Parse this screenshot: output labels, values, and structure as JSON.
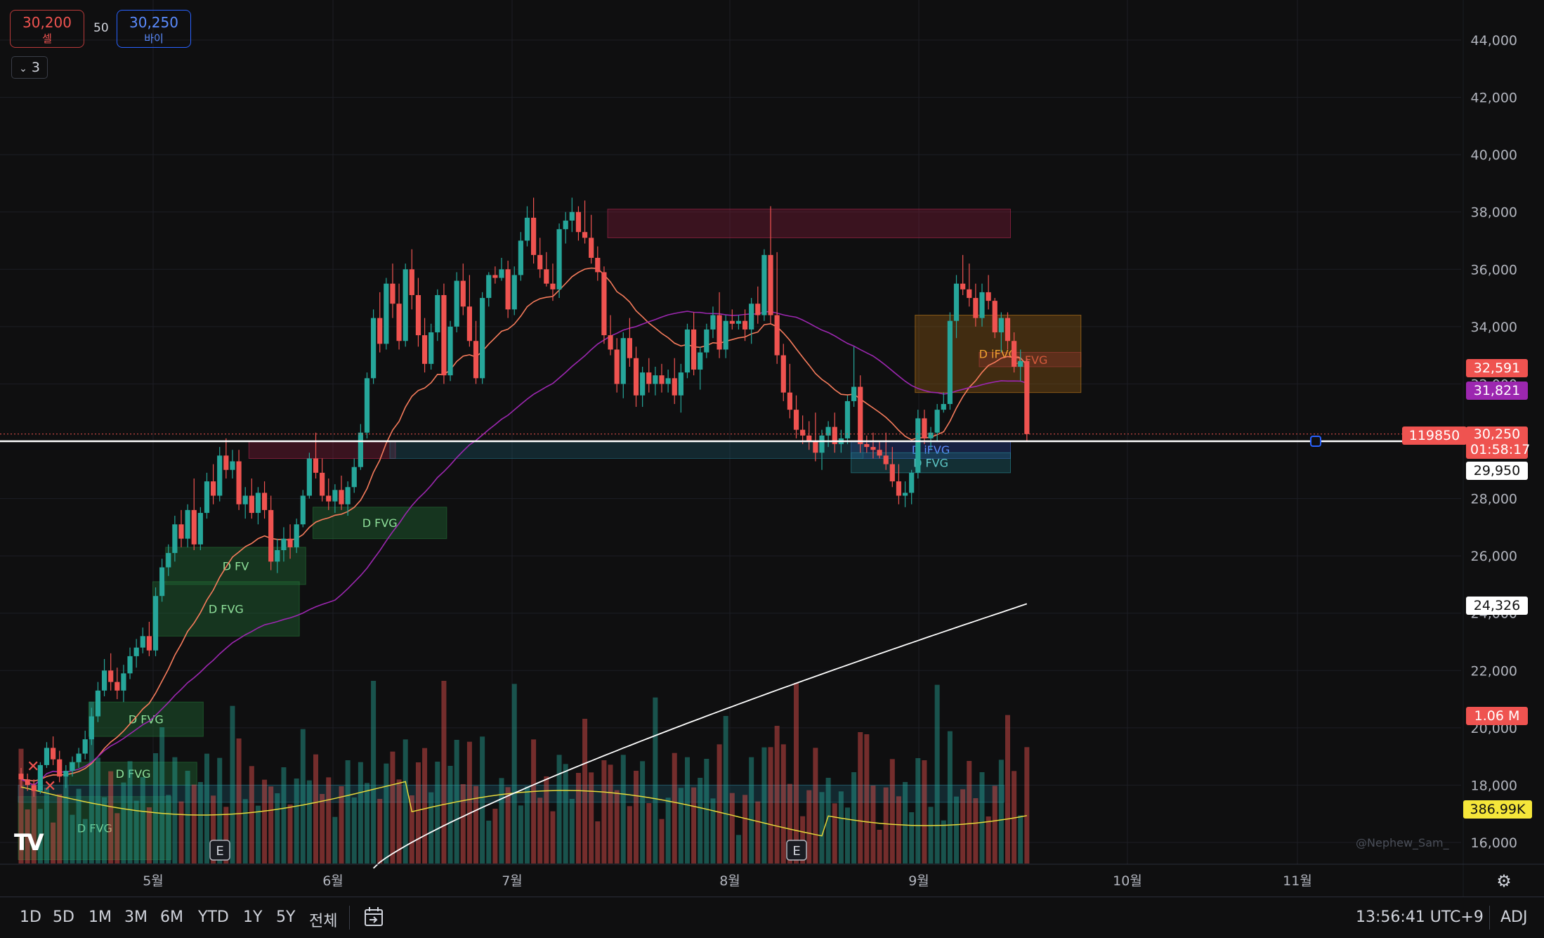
{
  "order_panel": {
    "sell_price": "30,200",
    "sell_label": "셀",
    "spread": "50",
    "buy_price": "30,250",
    "buy_label": "바이",
    "collapse_count": "3"
  },
  "chart_data": {
    "type": "candlestick",
    "price_axis": {
      "ticks": [
        16000,
        18000,
        20000,
        22000,
        24000,
        26000,
        28000,
        30000,
        32000,
        34000,
        36000,
        38000,
        40000,
        42000,
        44000
      ],
      "ylim": [
        15300,
        44900
      ]
    },
    "time_axis": {
      "labels": [
        "5월",
        "6월",
        "7월",
        "8월",
        "9월",
        "10월",
        "11월"
      ]
    },
    "candles": [
      [
        18400,
        18600,
        17900,
        18200
      ],
      [
        18200,
        18400,
        17800,
        18000
      ],
      [
        18000,
        18200,
        17600,
        17800
      ],
      [
        17800,
        18800,
        17700,
        18700
      ],
      [
        18700,
        19500,
        18600,
        19300
      ],
      [
        19300,
        19700,
        18700,
        18900
      ],
      [
        18900,
        19200,
        18100,
        18300
      ],
      [
        18300,
        18700,
        17900,
        18500
      ],
      [
        18500,
        19000,
        18300,
        18800
      ],
      [
        18800,
        19300,
        18600,
        19100
      ],
      [
        19100,
        19900,
        18900,
        19600
      ],
      [
        19600,
        20700,
        19400,
        20400
      ],
      [
        20400,
        21600,
        20200,
        21300
      ],
      [
        21300,
        22400,
        21100,
        22000
      ],
      [
        22000,
        22600,
        21300,
        21600
      ],
      [
        21600,
        22100,
        21000,
        21300
      ],
      [
        21300,
        22200,
        20900,
        21900
      ],
      [
        21900,
        22800,
        21700,
        22500
      ],
      [
        22500,
        23100,
        22100,
        22800
      ],
      [
        22800,
        23500,
        22600,
        23200
      ],
      [
        23200,
        23700,
        22500,
        22700
      ],
      [
        22700,
        24900,
        22500,
        24600
      ],
      [
        24600,
        25900,
        24400,
        25600
      ],
      [
        25600,
        26400,
        25300,
        26100
      ],
      [
        26100,
        27400,
        25800,
        27100
      ],
      [
        27100,
        27600,
        26300,
        26600
      ],
      [
        26600,
        27800,
        26300,
        27600
      ],
      [
        27600,
        28700,
        26200,
        26400
      ],
      [
        26400,
        27700,
        26200,
        27500
      ],
      [
        27500,
        28900,
        27300,
        28600
      ],
      [
        28600,
        29200,
        27800,
        28100
      ],
      [
        28100,
        29800,
        27900,
        29500
      ],
      [
        29500,
        30100,
        28700,
        29000
      ],
      [
        29000,
        29700,
        28700,
        29300
      ],
      [
        29300,
        29700,
        27600,
        27800
      ],
      [
        27800,
        28400,
        27300,
        28100
      ],
      [
        28100,
        28700,
        27300,
        27500
      ],
      [
        27500,
        28400,
        27100,
        28200
      ],
      [
        28200,
        28600,
        27300,
        27600
      ],
      [
        27600,
        28100,
        25500,
        25800
      ],
      [
        25800,
        26600,
        25400,
        26200
      ],
      [
        26200,
        27000,
        25800,
        26600
      ],
      [
        26600,
        27100,
        25900,
        26300
      ],
      [
        26300,
        27300,
        26100,
        27100
      ],
      [
        27100,
        28300,
        27000,
        28100
      ],
      [
        28100,
        29600,
        28000,
        29400
      ],
      [
        29400,
        30300,
        28700,
        28900
      ],
      [
        28900,
        29400,
        27900,
        28100
      ],
      [
        28100,
        28700,
        27600,
        27900
      ],
      [
        27900,
        28500,
        27500,
        28300
      ],
      [
        28300,
        28800,
        27600,
        27800
      ],
      [
        27800,
        28600,
        27400,
        28400
      ],
      [
        28400,
        29400,
        28200,
        29100
      ],
      [
        29100,
        30600,
        29000,
        30300
      ],
      [
        30300,
        32400,
        30100,
        32200
      ],
      [
        32200,
        34600,
        32000,
        34300
      ],
      [
        34300,
        35200,
        33100,
        33400
      ],
      [
        33400,
        35700,
        33200,
        35500
      ],
      [
        35500,
        36200,
        34300,
        34800
      ],
      [
        34800,
        35500,
        33200,
        33500
      ],
      [
        33500,
        36200,
        33300,
        36000
      ],
      [
        36000,
        36700,
        34600,
        35100
      ],
      [
        35100,
        35700,
        33300,
        33700
      ],
      [
        33700,
        34300,
        32400,
        32700
      ],
      [
        32700,
        34100,
        32500,
        33800
      ],
      [
        33800,
        35300,
        33500,
        35100
      ],
      [
        35100,
        35500,
        32000,
        32300
      ],
      [
        32300,
        34200,
        32100,
        34000
      ],
      [
        34000,
        35900,
        33800,
        35600
      ],
      [
        35600,
        36200,
        34400,
        34700
      ],
      [
        34700,
        35800,
        33300,
        33500
      ],
      [
        33500,
        34200,
        32000,
        32200
      ],
      [
        32200,
        35200,
        32000,
        35000
      ],
      [
        35000,
        35900,
        34700,
        35800
      ],
      [
        35800,
        36100,
        35500,
        35700
      ],
      [
        35700,
        36400,
        35600,
        36000
      ],
      [
        36000,
        36300,
        34300,
        34600
      ],
      [
        34600,
        36100,
        34400,
        35800
      ],
      [
        35800,
        37300,
        35600,
        37000
      ],
      [
        37000,
        38200,
        36800,
        37800
      ],
      [
        37800,
        38500,
        36200,
        36500
      ],
      [
        36500,
        37100,
        35700,
        36000
      ],
      [
        36000,
        36600,
        35400,
        35500
      ],
      [
        35500,
        36200,
        34900,
        35300
      ],
      [
        35300,
        37600,
        35000,
        37400
      ],
      [
        37400,
        38000,
        36900,
        37700
      ],
      [
        37700,
        38500,
        37300,
        38000
      ],
      [
        38000,
        38200,
        37000,
        37300
      ],
      [
        37300,
        38400,
        36900,
        37100
      ],
      [
        37100,
        37900,
        36200,
        36400
      ],
      [
        36400,
        36800,
        35600,
        35900
      ],
      [
        35900,
        36100,
        33400,
        33700
      ],
      [
        33700,
        34400,
        33000,
        33200
      ],
      [
        33200,
        33600,
        31700,
        32000
      ],
      [
        32000,
        33800,
        31500,
        33600
      ],
      [
        33600,
        34300,
        32600,
        32900
      ],
      [
        32900,
        33300,
        31200,
        31600
      ],
      [
        31600,
        32600,
        31200,
        32400
      ],
      [
        32400,
        32900,
        31700,
        32000
      ],
      [
        32000,
        32600,
        31600,
        32300
      ],
      [
        32300,
        32700,
        31700,
        32000
      ],
      [
        32000,
        32500,
        31700,
        32200
      ],
      [
        32200,
        32900,
        31300,
        31600
      ],
      [
        31600,
        32700,
        31000,
        32400
      ],
      [
        32400,
        34100,
        32200,
        33900
      ],
      [
        33900,
        34500,
        32300,
        32500
      ],
      [
        32500,
        33300,
        31800,
        33100
      ],
      [
        33100,
        34100,
        32900,
        33900
      ],
      [
        33900,
        34700,
        33600,
        34400
      ],
      [
        34400,
        35200,
        32900,
        33200
      ],
      [
        33200,
        34400,
        32900,
        34200
      ],
      [
        34200,
        34600,
        33900,
        34100
      ],
      [
        34100,
        34400,
        33900,
        34200
      ],
      [
        34200,
        34600,
        33500,
        33900
      ],
      [
        33900,
        35000,
        33400,
        34800
      ],
      [
        34800,
        35400,
        34100,
        34400
      ],
      [
        34400,
        36700,
        34200,
        36500
      ],
      [
        36500,
        38200,
        34100,
        34400
      ],
      [
        34400,
        36600,
        32700,
        33000
      ],
      [
        33000,
        33400,
        31400,
        31700
      ],
      [
        31700,
        32700,
        30800,
        31100
      ],
      [
        31100,
        31600,
        30100,
        30400
      ],
      [
        30400,
        30900,
        29900,
        30200
      ],
      [
        30200,
        30700,
        29700,
        30000
      ],
      [
        30000,
        31000,
        29300,
        29600
      ],
      [
        29600,
        30400,
        29000,
        30200
      ],
      [
        30200,
        30700,
        29800,
        30500
      ],
      [
        30500,
        31000,
        29600,
        29900
      ],
      [
        29900,
        30400,
        29600,
        30100
      ],
      [
        30100,
        31600,
        29900,
        31400
      ],
      [
        31400,
        33300,
        31200,
        31900
      ],
      [
        31900,
        32300,
        29600,
        29900
      ],
      [
        29900,
        30200,
        29600,
        29800
      ],
      [
        29800,
        30300,
        29400,
        29700
      ],
      [
        29700,
        30000,
        29400,
        29500
      ],
      [
        29500,
        30300,
        29000,
        29200
      ],
      [
        29200,
        29800,
        28400,
        28600
      ],
      [
        28600,
        29200,
        27800,
        28100
      ],
      [
        28100,
        28600,
        27700,
        28200
      ],
      [
        28200,
        29000,
        27800,
        28900
      ],
      [
        28900,
        31100,
        28700,
        30800
      ],
      [
        30800,
        31100,
        29900,
        30100
      ],
      [
        30100,
        30500,
        29700,
        30300
      ],
      [
        30300,
        31300,
        30000,
        31100
      ],
      [
        31100,
        31700,
        31000,
        31300
      ],
      [
        31300,
        34500,
        31100,
        34200
      ],
      [
        34200,
        35800,
        33600,
        35500
      ],
      [
        35500,
        36500,
        35100,
        35300
      ],
      [
        35300,
        36200,
        34700,
        35000
      ],
      [
        35000,
        35500,
        34000,
        34300
      ],
      [
        34300,
        35500,
        34000,
        35200
      ],
      [
        35200,
        35800,
        34600,
        34900
      ],
      [
        34900,
        35000,
        33600,
        33800
      ],
      [
        33800,
        34500,
        33100,
        34300
      ],
      [
        34300,
        34500,
        33200,
        33500
      ],
      [
        33500,
        33800,
        32400,
        32600
      ],
      [
        32600,
        33200,
        32100,
        32800
      ],
      [
        32800,
        32900,
        30000,
        30250
      ]
    ],
    "ema20_end": 32591,
    "ma50_end": 31821,
    "ma200_end": 24326,
    "vol_avg_end": "386.99K",
    "zones": [
      {
        "label": "",
        "type": "bearish",
        "top": 38100,
        "bottom": 37100,
        "start": 92,
        "end": 154
      },
      {
        "label": "D FVG",
        "type": "bearish",
        "top": 33100,
        "bottom": 32600,
        "start": 150,
        "end": 165
      },
      {
        "label": "D iFVG",
        "type": "orange",
        "top": 34400,
        "bottom": 31700,
        "start": 140,
        "end": 165
      },
      {
        "label": "D iFVG",
        "type": "blue",
        "top": 30000,
        "bottom": 29400,
        "start": 130,
        "end": 154
      },
      {
        "label": "D FVG",
        "type": "bullish-cyan",
        "top": 29600,
        "bottom": 28900,
        "start": 130,
        "end": 154
      },
      {
        "label": "",
        "type": "bearish",
        "top": 30000,
        "bottom": 29400,
        "start": 36,
        "end": 58
      },
      {
        "label": "",
        "type": "cyan",
        "top": 30000,
        "bottom": 29400,
        "start": 58,
        "end": 131
      },
      {
        "label": "D FVG",
        "type": "bullish",
        "top": 27700,
        "bottom": 26600,
        "start": 46,
        "end": 66
      },
      {
        "label": "D FV",
        "type": "bullish",
        "top": 26300,
        "bottom": 25000,
        "start": 23,
        "end": 44
      },
      {
        "label": "D FVG",
        "type": "bullish",
        "top": 25100,
        "bottom": 23200,
        "start": 21,
        "end": 43
      },
      {
        "label": "D FVG",
        "type": "bullish",
        "top": 20900,
        "bottom": 19700,
        "start": 11,
        "end": 28
      },
      {
        "label": "D FVG",
        "type": "bullish",
        "top": 18800,
        "bottom": 18000,
        "start": 8,
        "end": 27
      },
      {
        "label": "D FVG",
        "type": "bullish",
        "top": 17600,
        "bottom": 15400,
        "start": 0,
        "end": 23
      },
      {
        "label": "",
        "type": "cyan",
        "top": 18000,
        "bottom": 17400,
        "start": 0,
        "end": 153
      }
    ],
    "price_line": 30000,
    "earnings_markers": [
      "E",
      "E"
    ]
  },
  "price_labels": {
    "ema20": "32,591",
    "ma50": "31,821",
    "last": "30,250",
    "countdown": "01:58:17",
    "crosshair": "29,950",
    "ma200": "24,326",
    "volume": "1.06 M",
    "vol_avg": "386.99K",
    "cursor_value": "119850"
  },
  "watermark": "@Nephew_Sam_",
  "toolbar": {
    "timeframes": [
      "1D",
      "5D",
      "1M",
      "3M",
      "6M",
      "YTD",
      "1Y",
      "5Y",
      "전체"
    ],
    "clock": "13:56:41 UTC+9",
    "adj": "ADJ"
  },
  "colors": {
    "up": "#26a69a",
    "down": "#ef5350",
    "ema20": "#f77c5c",
    "ma50": "#9c27b0",
    "ma200": "#ffffff",
    "vol_avg": "#e6d83a"
  }
}
